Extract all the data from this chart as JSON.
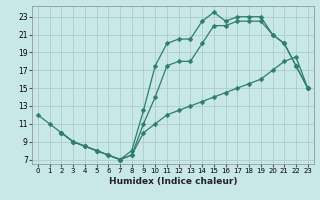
{
  "xlabel": "Humidex (Indice chaleur)",
  "bg_color": "#c8e8e8",
  "grid_color": "#b0cccc",
  "line_color": "#2e7d6e",
  "xlim": [
    -0.5,
    23.5
  ],
  "ylim": [
    6.5,
    24.2
  ],
  "xticks": [
    0,
    1,
    2,
    3,
    4,
    5,
    6,
    7,
    8,
    9,
    10,
    11,
    12,
    13,
    14,
    15,
    16,
    17,
    18,
    19,
    20,
    21,
    22,
    23
  ],
  "yticks": [
    7,
    9,
    11,
    13,
    15,
    17,
    19,
    21,
    23
  ],
  "line1_x": [
    0,
    1,
    2,
    3,
    4,
    5,
    6,
    7,
    8,
    9,
    10,
    11,
    12,
    13,
    14,
    15,
    16,
    17,
    18,
    19,
    20,
    21,
    22,
    23
  ],
  "line1_y": [
    12,
    11,
    10,
    9,
    8.5,
    8,
    7.5,
    7,
    8,
    12.5,
    17.5,
    20,
    20.5,
    20.5,
    22.5,
    23.5,
    22.5,
    23,
    23,
    23,
    21,
    20,
    17.5,
    15
  ],
  "line2_x": [
    2,
    3,
    4,
    5,
    6,
    7,
    8,
    9,
    10,
    11,
    12,
    13,
    14,
    15,
    16,
    17,
    18,
    19,
    20,
    21,
    22,
    23
  ],
  "line2_y": [
    10,
    9,
    8.5,
    8,
    7.5,
    7,
    7.5,
    11,
    14,
    17.5,
    18,
    18,
    20,
    22,
    22,
    22.5,
    22.5,
    22.5,
    21,
    20,
    17.5,
    15
  ],
  "line3_x": [
    2,
    3,
    4,
    5,
    6,
    7,
    8,
    9,
    10,
    11,
    12,
    13,
    14,
    15,
    16,
    17,
    18,
    19,
    20,
    21,
    22,
    23
  ],
  "line3_y": [
    10,
    9,
    8.5,
    8,
    7.5,
    7,
    7.5,
    10,
    11,
    12,
    12.5,
    13,
    13.5,
    14,
    14.5,
    15,
    15.5,
    16,
    17,
    18,
    18.5,
    15
  ]
}
